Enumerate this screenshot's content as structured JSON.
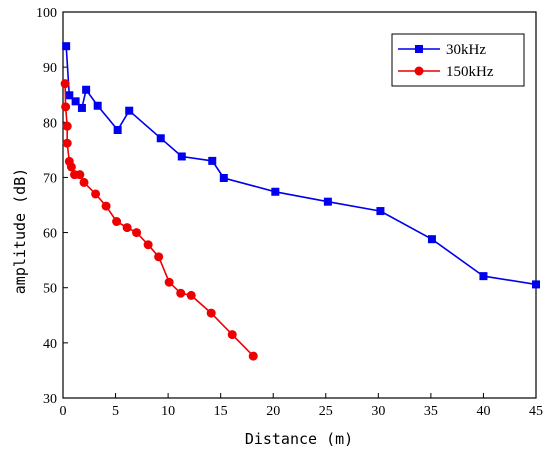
{
  "chart_data": {
    "type": "line",
    "title": "",
    "xlabel": "Distance (m)",
    "ylabel": "amplitude (dB)",
    "xlim": [
      0,
      45
    ],
    "ylim": [
      30,
      100
    ],
    "xticks": [
      0,
      5,
      10,
      15,
      20,
      25,
      30,
      35,
      40,
      45
    ],
    "yticks": [
      30,
      40,
      50,
      60,
      70,
      80,
      90,
      100
    ],
    "grid": false,
    "legend_position": "top-right",
    "series": [
      {
        "name": "30kHz",
        "color": "#0000ee",
        "marker": "square",
        "x": [
          0.3,
          0.6,
          1.2,
          1.8,
          2.2,
          3.3,
          5.2,
          6.3,
          9.3,
          11.3,
          14.2,
          15.3,
          20.2,
          25.2,
          30.2,
          35.1,
          40.0,
          45.0
        ],
        "y": [
          93.8,
          84.9,
          83.8,
          82.6,
          85.9,
          83.0,
          78.6,
          82.1,
          77.1,
          73.8,
          73.0,
          69.9,
          67.4,
          65.6,
          63.9,
          58.8,
          52.1,
          50.6
        ]
      },
      {
        "name": "150kHz",
        "color": "#ee0000",
        "marker": "circle",
        "x": [
          0.2,
          0.25,
          0.4,
          0.4,
          0.6,
          0.8,
          1.1,
          1.6,
          2.0,
          3.1,
          4.1,
          5.1,
          6.1,
          7.0,
          8.1,
          9.1,
          10.1,
          11.2,
          12.2,
          14.1,
          16.1,
          18.1
        ],
        "y": [
          87.0,
          82.8,
          79.3,
          76.2,
          72.9,
          71.9,
          70.5,
          70.5,
          69.1,
          67.0,
          64.8,
          62.0,
          60.9,
          60.0,
          57.8,
          55.6,
          51.0,
          49.0,
          48.6,
          45.4,
          41.5,
          37.6
        ]
      }
    ]
  }
}
